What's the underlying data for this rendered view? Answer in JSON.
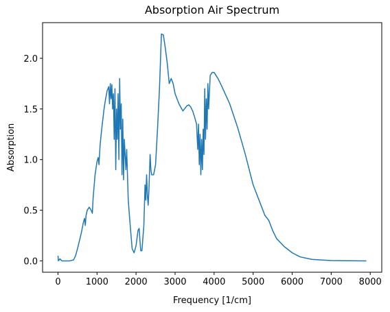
{
  "chart_data": {
    "type": "line",
    "title": "Absorption Air Spectrum",
    "x_label": "Frequency [1/cm]",
    "y_label": "Absorption",
    "x": [
      0,
      10,
      50,
      100,
      200,
      300,
      400,
      450,
      500,
      550,
      600,
      650,
      680,
      700,
      720,
      750,
      800,
      850,
      880,
      900,
      950,
      1000,
      1030,
      1050,
      1080,
      1120,
      1180,
      1220,
      1260,
      1300,
      1320,
      1340,
      1360,
      1380,
      1400,
      1420,
      1440,
      1460,
      1480,
      1500,
      1520,
      1540,
      1560,
      1580,
      1600,
      1620,
      1640,
      1660,
      1680,
      1700,
      1720,
      1740,
      1760,
      1780,
      1800,
      1850,
      1900,
      1950,
      2000,
      2050,
      2080,
      2100,
      2120,
      2150,
      2200,
      2230,
      2250,
      2270,
      2290,
      2310,
      2330,
      2360,
      2380,
      2400,
      2450,
      2500,
      2550,
      2600,
      2650,
      2700,
      2750,
      2800,
      2850,
      2900,
      2950,
      3000,
      3100,
      3200,
      3300,
      3350,
      3400,
      3450,
      3500,
      3550,
      3580,
      3600,
      3620,
      3640,
      3660,
      3680,
      3700,
      3720,
      3740,
      3760,
      3780,
      3800,
      3820,
      3840,
      3860,
      3900,
      3950,
      4000,
      4100,
      4200,
      4400,
      4600,
      4800,
      5000,
      5200,
      5300,
      5400,
      5500,
      5600,
      5800,
      6000,
      6200,
      6500,
      7000,
      7500,
      7900
    ],
    "series": [
      {
        "name": "Absorption",
        "color": "#1f77b4",
        "values": [
          0.05,
          0.0,
          0.02,
          0.0,
          0.0,
          0.0,
          0.01,
          0.05,
          0.12,
          0.2,
          0.28,
          0.38,
          0.42,
          0.35,
          0.45,
          0.5,
          0.53,
          0.5,
          0.47,
          0.62,
          0.85,
          0.98,
          1.02,
          0.95,
          1.15,
          1.3,
          1.5,
          1.6,
          1.68,
          1.72,
          1.55,
          1.75,
          1.6,
          1.74,
          1.5,
          1.65,
          1.2,
          1.7,
          0.9,
          1.5,
          1.2,
          1.65,
          1.0,
          1.8,
          1.3,
          1.55,
          0.85,
          1.4,
          0.8,
          1.2,
          1.05,
          0.9,
          1.1,
          0.85,
          0.6,
          0.35,
          0.12,
          0.08,
          0.15,
          0.3,
          0.32,
          0.2,
          0.1,
          0.1,
          0.35,
          0.75,
          0.6,
          0.85,
          0.65,
          0.55,
          0.7,
          1.05,
          0.9,
          0.85,
          0.85,
          0.95,
          1.3,
          1.7,
          2.24,
          2.23,
          2.1,
          1.95,
          1.75,
          1.8,
          1.75,
          1.65,
          1.55,
          1.48,
          1.53,
          1.54,
          1.52,
          1.48,
          1.42,
          1.35,
          1.1,
          1.35,
          0.95,
          1.25,
          0.85,
          1.2,
          0.9,
          1.3,
          1.05,
          1.7,
          1.2,
          1.6,
          1.3,
          1.75,
          1.5,
          1.83,
          1.86,
          1.86,
          1.8,
          1.72,
          1.55,
          1.32,
          1.05,
          0.75,
          0.55,
          0.45,
          0.4,
          0.3,
          0.22,
          0.14,
          0.08,
          0.04,
          0.015,
          0.003,
          0.001,
          0.0
        ]
      }
    ],
    "xlim": [
      -395,
      8295
    ],
    "ylim": [
      -0.112,
      2.352
    ],
    "xticks": [
      0,
      1000,
      2000,
      3000,
      4000,
      5000,
      6000,
      7000,
      8000
    ],
    "yticks": [
      {
        "value": 0,
        "label": "0.0"
      },
      {
        "value": 0.5,
        "label": "0.5"
      },
      {
        "value": 1,
        "label": "1.0"
      },
      {
        "value": 1.5,
        "label": "1.5"
      },
      {
        "value": 2,
        "label": "2.0"
      }
    ]
  }
}
